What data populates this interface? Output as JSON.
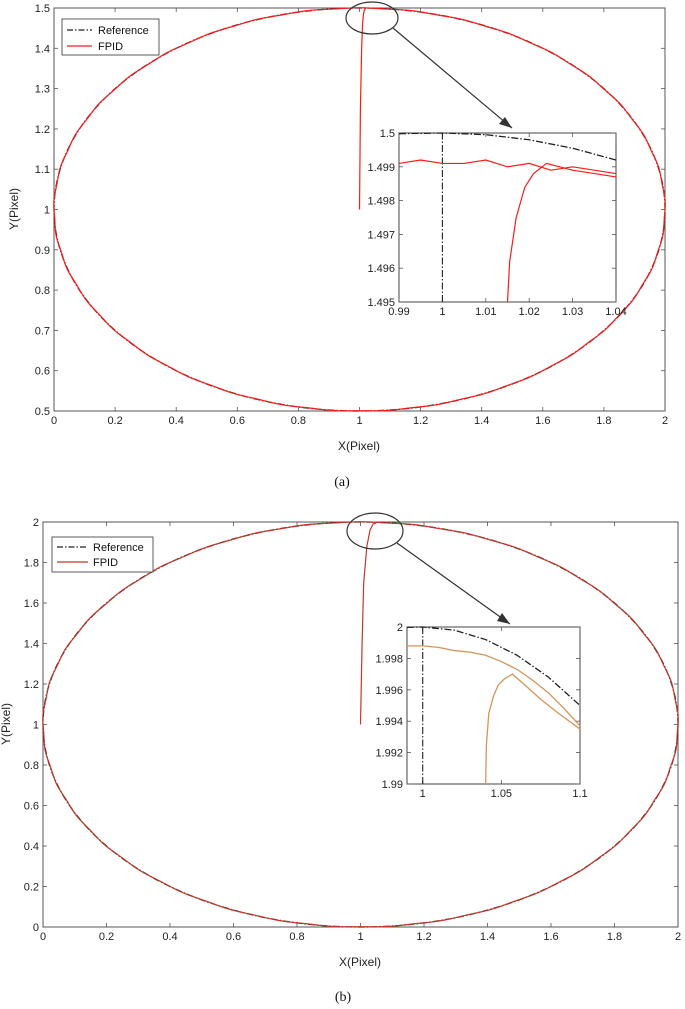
{
  "chart_data": [
    {
      "type": "line",
      "xlabel": "X(Pixel)",
      "ylabel": "Y(Pixel)",
      "xlim": [
        0,
        2
      ],
      "ylim": [
        0.5,
        1.5
      ],
      "xticks": [
        "0",
        "0.2",
        "0.4",
        "0.6",
        "0.8",
        "1",
        "1.2",
        "1.4",
        "1.6",
        "1.8",
        "2"
      ],
      "yticks": [
        "0.5",
        "0.6",
        "0.7",
        "0.8",
        "0.9",
        "1",
        "1.1",
        "1.2",
        "1.3",
        "1.4",
        "1.5"
      ],
      "legend": "top-left",
      "caption": "(a)",
      "series": [
        {
          "name": "Reference",
          "color": "#222222",
          "style": "dash-dot",
          "shape": "ellipse",
          "center": [
            1,
            1
          ],
          "radii": [
            1,
            0.5
          ]
        },
        {
          "name": "FPID",
          "color": "#ff0000",
          "style": "solid",
          "shape": "ellipse",
          "center": [
            1,
            1
          ],
          "radii": [
            1,
            0.5
          ],
          "start_segment": {
            "x": [
              1.0,
              1.003,
              1.007,
              1.01,
              1.013,
              1.016,
              1.02
            ],
            "y": [
              1.0,
              1.25,
              1.4,
              1.46,
              1.485,
              1.495,
              1.499
            ]
          }
        }
      ],
      "inset": {
        "xlim": [
          0.99,
          1.04
        ],
        "ylim": [
          1.495,
          1.5
        ],
        "xticks": [
          "0.99",
          "1",
          "1.01",
          "1.02",
          "1.03",
          "1.04"
        ],
        "yticks": [
          "1.495",
          "1.496",
          "1.497",
          "1.498",
          "1.499",
          "1.5"
        ],
        "reference": {
          "x": [
            0.99,
            1.0,
            1.01,
            1.02,
            1.03,
            1.04
          ],
          "y": [
            1.49998,
            1.5,
            1.49995,
            1.4998,
            1.49955,
            1.4992
          ]
        },
        "reference_vertical_x": 1.0,
        "fpid": {
          "x": [
            0.99,
            0.995,
            1.0,
            1.005,
            1.01,
            1.015,
            1.02,
            1.025,
            1.03,
            1.035,
            1.04
          ],
          "y": [
            1.4991,
            1.4992,
            1.4991,
            1.4991,
            1.4992,
            1.499,
            1.4991,
            1.4989,
            1.499,
            1.4989,
            1.4988
          ]
        },
        "fpid_rise": {
          "x": [
            1.015,
            1.0155,
            1.017,
            1.019,
            1.021,
            1.024,
            1.027,
            1.03,
            1.035,
            1.04
          ],
          "y": [
            1.495,
            1.4962,
            1.4975,
            1.4984,
            1.4988,
            1.4991,
            1.499,
            1.4989,
            1.4988,
            1.4987
          ]
        }
      }
    },
    {
      "type": "line",
      "xlabel": "X(Pixel)",
      "ylabel": "Y(Pixel)",
      "xlim": [
        0,
        2
      ],
      "ylim": [
        0,
        2
      ],
      "xticks": [
        "0",
        "0.2",
        "0.4",
        "0.6",
        "0.8",
        "1",
        "1.2",
        "1.4",
        "1.6",
        "1.8",
        "2"
      ],
      "yticks": [
        "0",
        "0.2",
        "0.4",
        "0.6",
        "0.8",
        "1",
        "1.2",
        "1.4",
        "1.6",
        "1.8",
        "2"
      ],
      "legend": "top-left",
      "caption": "(b)",
      "series": [
        {
          "name": "Reference",
          "color": "#222222",
          "style": "dash-dot",
          "shape": "ellipse",
          "center": [
            1,
            1
          ],
          "radii": [
            1,
            1
          ]
        },
        {
          "name": "FPID",
          "color": "#c0392b",
          "style": "solid",
          "shape": "ellipse",
          "center": [
            1,
            1
          ],
          "radii": [
            1,
            1
          ],
          "start_segment": {
            "x": [
              1.0,
              1.005,
              1.01,
              1.02,
              1.03,
              1.04,
              1.05
            ],
            "y": [
              1.0,
              1.4,
              1.7,
              1.88,
              1.96,
              1.99,
              1.997
            ]
          }
        }
      ],
      "inset": {
        "xlim": [
          0.99,
          1.1
        ],
        "ylim": [
          1.99,
          2.0
        ],
        "xticks": [
          "1",
          "1.05",
          "1.1"
        ],
        "yticks": [
          "1.99",
          "1.992",
          "1.994",
          "1.996",
          "1.998",
          "2"
        ],
        "reference": {
          "x": [
            0.99,
            1.0,
            1.02,
            1.04,
            1.06,
            1.08,
            1.1
          ],
          "y": [
            1.99998,
            2.0,
            1.9998,
            1.9992,
            1.9982,
            1.9968,
            1.995
          ]
        },
        "reference_vertical_x": 1.0,
        "fpid": {
          "x": [
            0.99,
            1.0,
            1.01,
            1.02,
            1.03,
            1.04,
            1.05,
            1.06,
            1.07,
            1.08,
            1.09,
            1.1
          ],
          "y": [
            1.9988,
            1.9988,
            1.9987,
            1.9985,
            1.9984,
            1.9982,
            1.9978,
            1.9973,
            1.9966,
            1.9958,
            1.9948,
            1.9937
          ]
        },
        "fpid_rise": {
          "x": [
            1.04,
            1.0405,
            1.042,
            1.045,
            1.048,
            1.052,
            1.057,
            1.065,
            1.075,
            1.085,
            1.1
          ],
          "y": [
            1.99,
            1.9925,
            1.9945,
            1.9956,
            1.9963,
            1.9967,
            1.997,
            1.9963,
            1.9954,
            1.9946,
            1.9935
          ]
        }
      }
    }
  ]
}
